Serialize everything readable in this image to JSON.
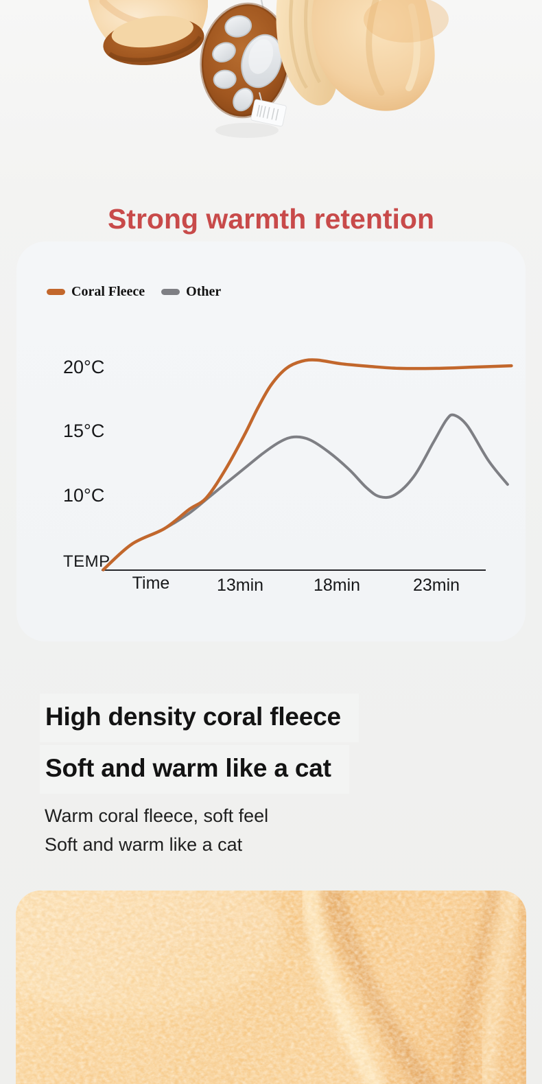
{
  "title": {
    "text": "Strong warmth retention",
    "color": "#c84a4a"
  },
  "chart_data": {
    "type": "line",
    "title": "Strong warmth retention",
    "x_tick_labels": [
      "Time",
      "13min",
      "18min",
      "23min"
    ],
    "x_tick_values_min": [
      8,
      13,
      18,
      23
    ],
    "y_tick_labels": [
      "20°C",
      "15°C",
      "10°C",
      "TEMP"
    ],
    "y_tick_values_c": [
      20,
      15,
      10,
      null
    ],
    "x_unit": "minutes",
    "y_unit": "°C",
    "grid": false,
    "legend_position": "top-left",
    "series": [
      {
        "name": "Coral Fleece",
        "color": "#c2672c",
        "points": [
          [
            5.5,
            4.2
          ],
          [
            7,
            6.2
          ],
          [
            8.7,
            7.4
          ],
          [
            10,
            8.9
          ],
          [
            10.9,
            9.8
          ],
          [
            11.9,
            12.0
          ],
          [
            12.9,
            14.7
          ],
          [
            13.6,
            16.8
          ],
          [
            14.3,
            18.6
          ],
          [
            15.1,
            19.9
          ],
          [
            15.9,
            20.45
          ],
          [
            16.7,
            20.55
          ],
          [
            18,
            20.25
          ],
          [
            19.5,
            20.05
          ],
          [
            21,
            19.9
          ],
          [
            23,
            19.9
          ],
          [
            25,
            20.0
          ],
          [
            26.9,
            20.1
          ]
        ]
      },
      {
        "name": "Other",
        "color": "#7e7f84",
        "points": [
          [
            5.5,
            4.2
          ],
          [
            7,
            6.2
          ],
          [
            8.7,
            7.4
          ],
          [
            10,
            8.6
          ],
          [
            11,
            9.8
          ],
          [
            11.9,
            10.9
          ],
          [
            12.9,
            12.1
          ],
          [
            13.9,
            13.3
          ],
          [
            14.8,
            14.2
          ],
          [
            15.5,
            14.55
          ],
          [
            16.3,
            14.35
          ],
          [
            17.3,
            13.4
          ],
          [
            18.4,
            12.0
          ],
          [
            19.3,
            10.6
          ],
          [
            20,
            9.9
          ],
          [
            20.8,
            10.05
          ],
          [
            21.8,
            11.5
          ],
          [
            22.8,
            14.1
          ],
          [
            23.5,
            15.9
          ],
          [
            23.9,
            16.25
          ],
          [
            24.6,
            15.4
          ],
          [
            25.7,
            12.7
          ],
          [
            26.7,
            10.85
          ]
        ]
      }
    ]
  },
  "content": {
    "heading1": "High density coral fleece",
    "heading2": "Soft and warm like a cat",
    "body_line1": "Warm coral fleece, soft feel",
    "body_line2": "Soft and warm like a cat"
  },
  "images": {
    "hero": "plush-cat-paw-mittens-hanging",
    "bottom": "coral-fleece-fabric-closeup"
  }
}
